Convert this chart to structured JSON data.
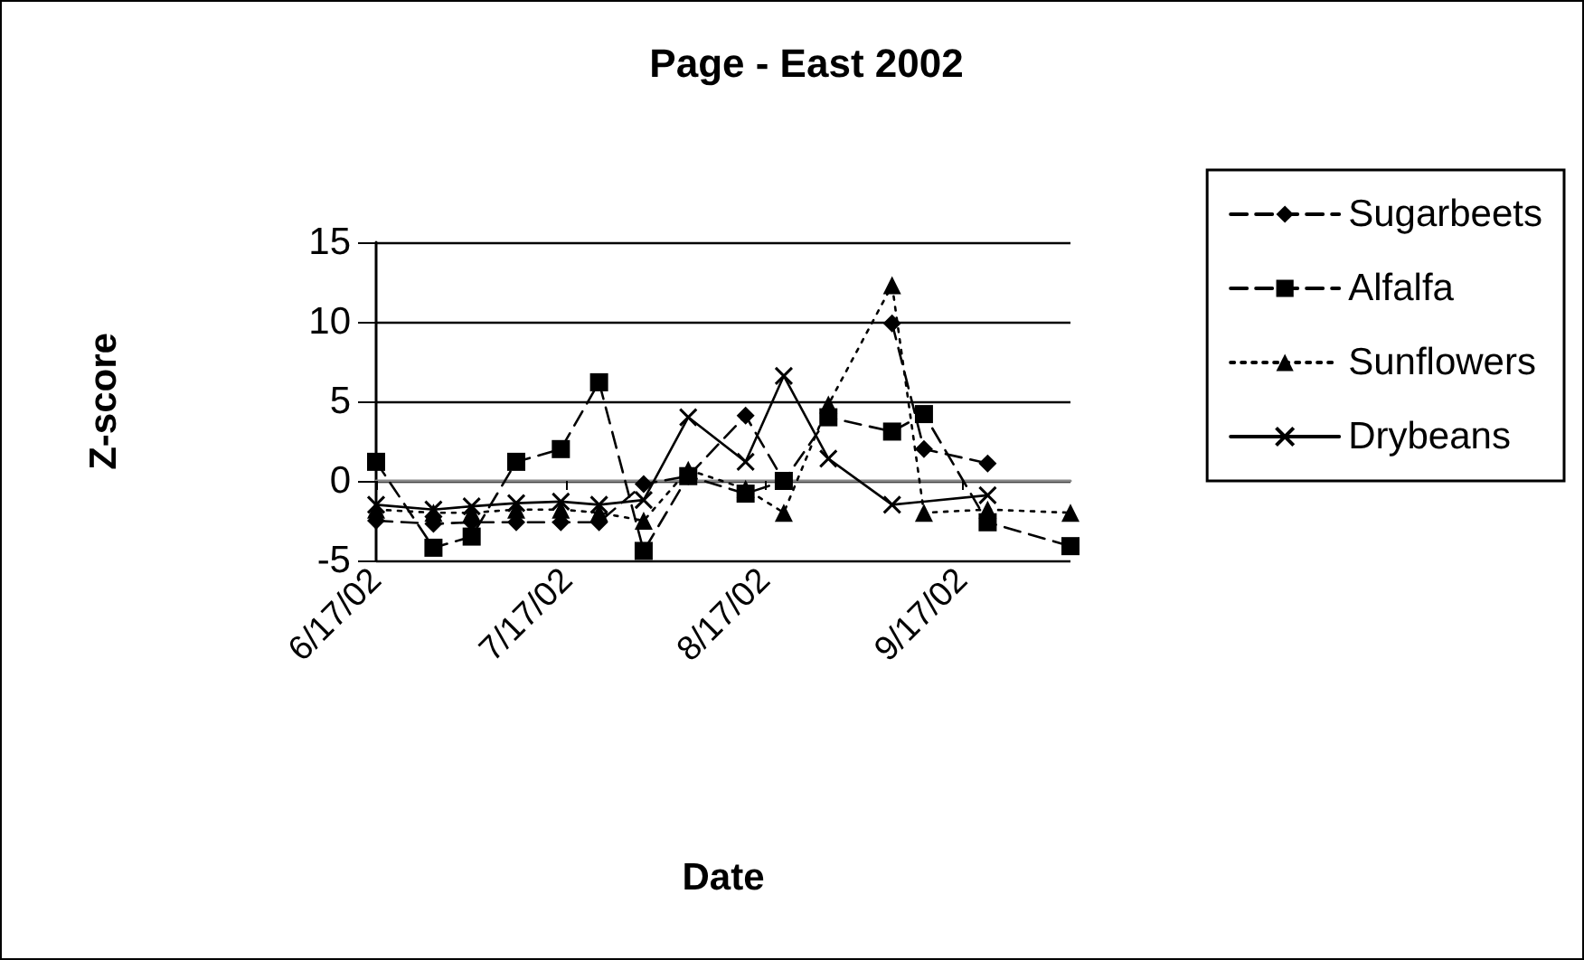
{
  "chart_data": {
    "type": "line",
    "title": "Page - East 2002",
    "xlabel": "Date",
    "ylabel": "Z-score",
    "ylim": [
      -5,
      15
    ],
    "yticks": [
      -5,
      0,
      5,
      10,
      15
    ],
    "xlim": [
      "2002-06-17",
      "2002-10-04"
    ],
    "xticks": [
      {
        "value": "2002-06-17",
        "label": "6/17/02"
      },
      {
        "value": "2002-07-17",
        "label": "7/17/02"
      },
      {
        "value": "2002-08-17",
        "label": "8/17/02"
      },
      {
        "value": "2002-09-17",
        "label": "9/17/02"
      }
    ],
    "grid": "y",
    "legend": "right",
    "series": [
      {
        "name": "Sugarbeets",
        "color": "#000000",
        "marker": "diamond",
        "line_style": "dashed",
        "x": [
          "2002-06-17",
          "2002-06-26",
          "2002-07-02",
          "2002-07-09",
          "2002-07-16",
          "2002-07-22",
          "2002-07-29",
          "2002-08-05",
          "2002-08-14",
          "2002-08-20",
          "2002-08-27",
          "2002-09-06",
          "2002-09-11",
          "2002-09-21"
        ],
        "values": [
          -2.5,
          -2.7,
          -2.6,
          -2.6,
          -2.6,
          -2.6,
          -0.2,
          0.3,
          4.1,
          0,
          null,
          9.9,
          2,
          1.1
        ]
      },
      {
        "name": "Alfalfa",
        "color": "#000000",
        "marker": "square",
        "line_style": "dashed",
        "x": [
          "2002-06-17",
          "2002-06-26",
          "2002-07-02",
          "2002-07-09",
          "2002-07-16",
          "2002-07-22",
          "2002-07-29",
          "2002-08-05",
          "2002-08-14",
          "2002-08-20",
          "2002-08-27",
          "2002-09-06",
          "2002-09-11",
          "2002-09-21",
          "2002-10-04"
        ],
        "values": [
          1.2,
          -4.2,
          -3.5,
          1.2,
          2,
          6.2,
          -4.4,
          0.3,
          -0.8,
          0,
          4,
          3.1,
          4.2,
          -2.6,
          -4.1
        ]
      },
      {
        "name": "Sunflowers",
        "color": "#000000",
        "marker": "triangle",
        "line_style": "dotted",
        "x": [
          "2002-06-17",
          "2002-06-26",
          "2002-07-02",
          "2002-07-09",
          "2002-07-16",
          "2002-07-22",
          "2002-07-29",
          "2002-08-05",
          "2002-08-14",
          "2002-08-20",
          "2002-08-27",
          "2002-09-06",
          "2002-09-11",
          "2002-09-21",
          "2002-10-04"
        ],
        "values": [
          -1.8,
          -2,
          -2,
          -1.8,
          -1.8,
          -2,
          -2.5,
          0.7,
          -0.5,
          -2,
          4.8,
          12.3,
          -2,
          -1.8,
          -2
        ]
      },
      {
        "name": "Drybeans",
        "color": "#000000",
        "marker": "cross",
        "line_style": "solid",
        "x": [
          "2002-06-17",
          "2002-06-26",
          "2002-07-02",
          "2002-07-09",
          "2002-07-16",
          "2002-07-22",
          "2002-07-29",
          "2002-08-05",
          "2002-08-14",
          "2002-08-20",
          "2002-08-27",
          "2002-09-06",
          "2002-09-21"
        ],
        "values": [
          -1.5,
          -1.8,
          -1.6,
          -1.4,
          -1.3,
          -1.5,
          -1.2,
          4,
          1.2,
          6.6,
          1.4,
          -1.5,
          -0.9
        ]
      }
    ]
  }
}
